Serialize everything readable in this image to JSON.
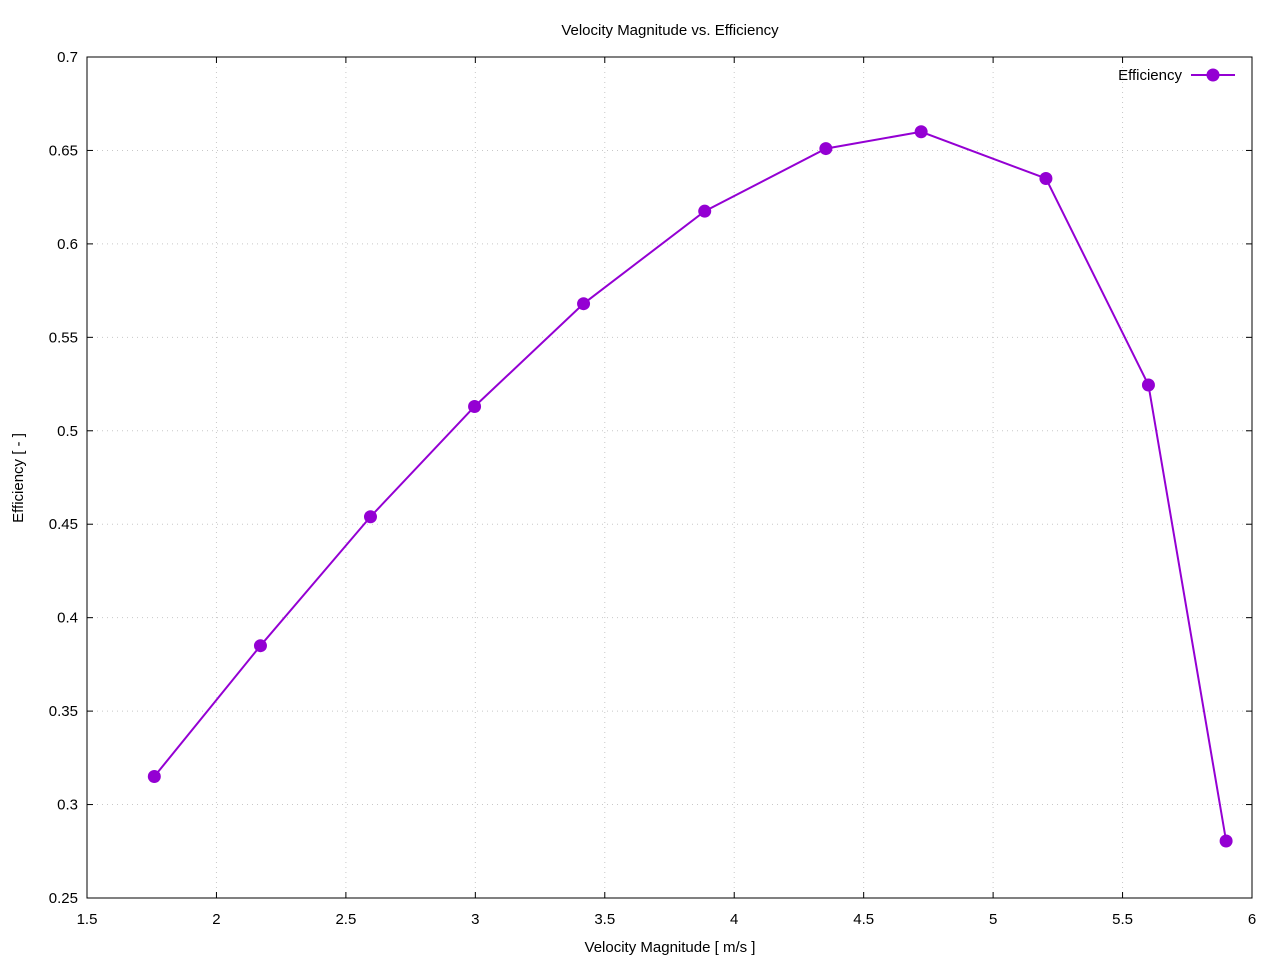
{
  "chart_data": {
    "type": "line",
    "title": "Velocity Magnitude  vs. Efficiency",
    "xlabel": "Velocity Magnitude [ m/s ]",
    "ylabel": "Efficiency [ - ]",
    "xlim": [
      1.5,
      6
    ],
    "ylim": [
      0.25,
      0.7
    ],
    "xticks": [
      1.5,
      2,
      2.5,
      3,
      3.5,
      4,
      4.5,
      5,
      5.5,
      6
    ],
    "xtick_labels": [
      "1.5",
      "2",
      "2.5",
      "3",
      "3.5",
      "4",
      "4.5",
      "5",
      "5.5",
      "6"
    ],
    "yticks": [
      0.25,
      0.3,
      0.35,
      0.4,
      0.45,
      0.5,
      0.55,
      0.6,
      0.65,
      0.7
    ],
    "ytick_labels": [
      "0.25",
      "0.3",
      "0.35",
      "0.4",
      "0.45",
      "0.5",
      "0.55",
      "0.6",
      "0.65",
      "0.7"
    ],
    "grid": true,
    "legend_position": "top-right",
    "series": [
      {
        "name": "Efficiency",
        "color": "#9400d3",
        "marker": "circle",
        "x": [
          1.76,
          2.17,
          2.595,
          2.997,
          3.418,
          3.886,
          4.354,
          4.722,
          5.204,
          5.6,
          5.9
        ],
        "y": [
          0.315,
          0.385,
          0.454,
          0.513,
          0.568,
          0.6175,
          0.651,
          0.66,
          0.635,
          0.5245,
          0.2805
        ]
      }
    ]
  }
}
